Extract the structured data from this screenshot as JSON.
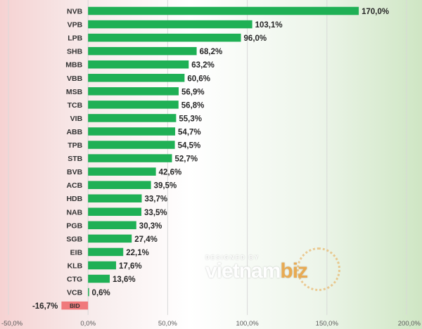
{
  "chart_data": {
    "type": "bar",
    "orientation": "horizontal",
    "categories": [
      "NVB",
      "VPB",
      "LPB",
      "SHB",
      "MBB",
      "VBB",
      "MSB",
      "TCB",
      "VIB",
      "ABB",
      "TPB",
      "STB",
      "BVB",
      "ACB",
      "HDB",
      "NAB",
      "PGB",
      "SGB",
      "EIB",
      "KLB",
      "CTG",
      "VCB",
      "BID"
    ],
    "values": [
      170.0,
      103.1,
      96.0,
      68.2,
      63.2,
      60.6,
      56.9,
      56.8,
      55.3,
      54.7,
      54.5,
      52.7,
      42.6,
      39.5,
      33.7,
      33.5,
      30.3,
      27.4,
      22.1,
      17.6,
      13.6,
      0.6,
      -16.7
    ],
    "value_labels": [
      "170,0%",
      "103,1%",
      "96,0%",
      "68,2%",
      "63,2%",
      "60,6%",
      "56,9%",
      "56,8%",
      "55,3%",
      "54,7%",
      "54,5%",
      "52,7%",
      "42,6%",
      "39,5%",
      "33,7%",
      "33,5%",
      "30,3%",
      "27,4%",
      "22,1%",
      "17,6%",
      "13,6%",
      "0,6%",
      "-16,7%"
    ],
    "x_ticks": [
      -50,
      0,
      50,
      100,
      150,
      200
    ],
    "x_tick_labels": [
      "-50,0%",
      "0,0%",
      "50,0%",
      "100,0%",
      "150,0%",
      "200,0%"
    ],
    "xlim": [
      -50,
      200
    ],
    "grid": true,
    "colors": {
      "positive": "#1fb055",
      "negative": "#f0797b"
    }
  },
  "watermark": {
    "line1": "DESIGNED BY",
    "brand_main": "vietnam",
    "brand_accent": "biz"
  }
}
